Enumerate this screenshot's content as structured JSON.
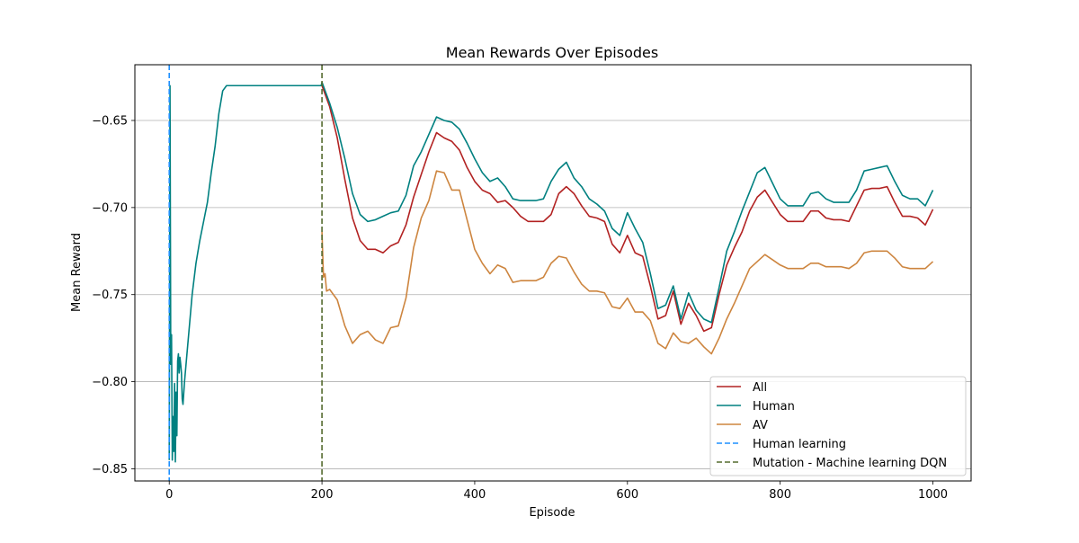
{
  "chart_data": {
    "type": "line",
    "title": "Mean Rewards Over Episodes",
    "xlabel": "Episode",
    "ylabel": "Mean Reward",
    "xlim": [
      -45,
      1050
    ],
    "ylim": [
      -0.857,
      -0.618
    ],
    "xticks": [
      0,
      200,
      400,
      600,
      800,
      1000
    ],
    "xtick_labels": [
      "0",
      "200",
      "400",
      "600",
      "800",
      "1000"
    ],
    "yticks": [
      -0.65,
      -0.7,
      -0.75,
      -0.8,
      -0.85
    ],
    "ytick_labels": [
      "−0.65",
      "−0.70",
      "−0.75",
      "−0.80",
      "−0.85"
    ],
    "grid": "y",
    "legend_position": "bottom-right",
    "series": [
      {
        "name": "All",
        "color": "#b22222",
        "style": "solid",
        "points": [
          [
            200,
            -0.63
          ],
          [
            210,
            -0.642
          ],
          [
            220,
            -0.66
          ],
          [
            230,
            -0.684
          ],
          [
            240,
            -0.706
          ],
          [
            250,
            -0.719
          ],
          [
            260,
            -0.724
          ],
          [
            270,
            -0.724
          ],
          [
            280,
            -0.726
          ],
          [
            290,
            -0.722
          ],
          [
            300,
            -0.72
          ],
          [
            310,
            -0.71
          ],
          [
            320,
            -0.694
          ],
          [
            330,
            -0.681
          ],
          [
            340,
            -0.668
          ],
          [
            350,
            -0.657
          ],
          [
            360,
            -0.66
          ],
          [
            370,
            -0.662
          ],
          [
            380,
            -0.667
          ],
          [
            390,
            -0.677
          ],
          [
            400,
            -0.685
          ],
          [
            410,
            -0.69
          ],
          [
            420,
            -0.692
          ],
          [
            430,
            -0.697
          ],
          [
            440,
            -0.696
          ],
          [
            450,
            -0.7
          ],
          [
            460,
            -0.705
          ],
          [
            470,
            -0.708
          ],
          [
            480,
            -0.708
          ],
          [
            490,
            -0.708
          ],
          [
            500,
            -0.704
          ],
          [
            510,
            -0.692
          ],
          [
            520,
            -0.688
          ],
          [
            530,
            -0.692
          ],
          [
            540,
            -0.699
          ],
          [
            550,
            -0.705
          ],
          [
            560,
            -0.706
          ],
          [
            570,
            -0.708
          ],
          [
            580,
            -0.721
          ],
          [
            590,
            -0.726
          ],
          [
            600,
            -0.716
          ],
          [
            610,
            -0.726
          ],
          [
            620,
            -0.728
          ],
          [
            630,
            -0.745
          ],
          [
            640,
            -0.764
          ],
          [
            650,
            -0.762
          ],
          [
            660,
            -0.748
          ],
          [
            670,
            -0.767
          ],
          [
            680,
            -0.755
          ],
          [
            690,
            -0.762
          ],
          [
            700,
            -0.771
          ],
          [
            710,
            -0.769
          ],
          [
            720,
            -0.75
          ],
          [
            730,
            -0.733
          ],
          [
            740,
            -0.723
          ],
          [
            750,
            -0.714
          ],
          [
            760,
            -0.702
          ],
          [
            770,
            -0.694
          ],
          [
            780,
            -0.69
          ],
          [
            790,
            -0.697
          ],
          [
            800,
            -0.704
          ],
          [
            810,
            -0.708
          ],
          [
            820,
            -0.708
          ],
          [
            830,
            -0.708
          ],
          [
            840,
            -0.702
          ],
          [
            850,
            -0.702
          ],
          [
            860,
            -0.706
          ],
          [
            870,
            -0.707
          ],
          [
            880,
            -0.707
          ],
          [
            890,
            -0.708
          ],
          [
            900,
            -0.699
          ],
          [
            910,
            -0.69
          ],
          [
            920,
            -0.689
          ],
          [
            930,
            -0.689
          ],
          [
            940,
            -0.688
          ],
          [
            950,
            -0.697
          ],
          [
            960,
            -0.705
          ],
          [
            970,
            -0.705
          ],
          [
            980,
            -0.706
          ],
          [
            990,
            -0.71
          ],
          [
            1000,
            -0.701
          ]
        ]
      },
      {
        "name": "Human",
        "color": "#008080",
        "style": "solid",
        "points": [
          [
            0,
            -0.845
          ],
          [
            1,
            -0.63
          ],
          [
            2,
            -0.79
          ],
          [
            3,
            -0.773
          ],
          [
            4,
            -0.845
          ],
          [
            5,
            -0.82
          ],
          [
            6,
            -0.84
          ],
          [
            7,
            -0.801
          ],
          [
            8,
            -0.846
          ],
          [
            9,
            -0.806
          ],
          [
            10,
            -0.831
          ],
          [
            11,
            -0.788
          ],
          [
            12,
            -0.784
          ],
          [
            13,
            -0.795
          ],
          [
            14,
            -0.786
          ],
          [
            15,
            -0.79
          ],
          [
            16,
            -0.795
          ],
          [
            17,
            -0.81
          ],
          [
            18,
            -0.813
          ],
          [
            20,
            -0.8
          ],
          [
            25,
            -0.775
          ],
          [
            30,
            -0.75
          ],
          [
            35,
            -0.732
          ],
          [
            40,
            -0.719
          ],
          [
            45,
            -0.708
          ],
          [
            50,
            -0.697
          ],
          [
            55,
            -0.68
          ],
          [
            60,
            -0.665
          ],
          [
            65,
            -0.646
          ],
          [
            70,
            -0.633
          ],
          [
            75,
            -0.63
          ],
          [
            100,
            -0.63
          ],
          [
            150,
            -0.63
          ],
          [
            199,
            -0.63
          ],
          [
            200,
            -0.628
          ],
          [
            210,
            -0.64
          ],
          [
            220,
            -0.654
          ],
          [
            230,
            -0.672
          ],
          [
            240,
            -0.692
          ],
          [
            250,
            -0.704
          ],
          [
            260,
            -0.708
          ],
          [
            270,
            -0.707
          ],
          [
            280,
            -0.705
          ],
          [
            290,
            -0.703
          ],
          [
            300,
            -0.702
          ],
          [
            310,
            -0.693
          ],
          [
            320,
            -0.676
          ],
          [
            330,
            -0.668
          ],
          [
            340,
            -0.658
          ],
          [
            350,
            -0.648
          ],
          [
            360,
            -0.65
          ],
          [
            370,
            -0.651
          ],
          [
            380,
            -0.655
          ],
          [
            390,
            -0.663
          ],
          [
            400,
            -0.672
          ],
          [
            410,
            -0.68
          ],
          [
            420,
            -0.685
          ],
          [
            430,
            -0.683
          ],
          [
            440,
            -0.688
          ],
          [
            450,
            -0.695
          ],
          [
            460,
            -0.696
          ],
          [
            470,
            -0.696
          ],
          [
            480,
            -0.696
          ],
          [
            490,
            -0.695
          ],
          [
            500,
            -0.685
          ],
          [
            510,
            -0.678
          ],
          [
            520,
            -0.674
          ],
          [
            530,
            -0.683
          ],
          [
            540,
            -0.688
          ],
          [
            550,
            -0.695
          ],
          [
            560,
            -0.698
          ],
          [
            570,
            -0.702
          ],
          [
            580,
            -0.712
          ],
          [
            590,
            -0.716
          ],
          [
            600,
            -0.703
          ],
          [
            610,
            -0.712
          ],
          [
            620,
            -0.72
          ],
          [
            630,
            -0.738
          ],
          [
            640,
            -0.758
          ],
          [
            650,
            -0.756
          ],
          [
            660,
            -0.745
          ],
          [
            670,
            -0.764
          ],
          [
            680,
            -0.749
          ],
          [
            690,
            -0.759
          ],
          [
            700,
            -0.764
          ],
          [
            710,
            -0.766
          ],
          [
            720,
            -0.746
          ],
          [
            730,
            -0.725
          ],
          [
            740,
            -0.714
          ],
          [
            750,
            -0.702
          ],
          [
            760,
            -0.691
          ],
          [
            770,
            -0.68
          ],
          [
            780,
            -0.677
          ],
          [
            790,
            -0.686
          ],
          [
            800,
            -0.695
          ],
          [
            810,
            -0.699
          ],
          [
            820,
            -0.699
          ],
          [
            830,
            -0.699
          ],
          [
            840,
            -0.692
          ],
          [
            850,
            -0.691
          ],
          [
            860,
            -0.695
          ],
          [
            870,
            -0.697
          ],
          [
            880,
            -0.697
          ],
          [
            890,
            -0.697
          ],
          [
            900,
            -0.69
          ],
          [
            910,
            -0.679
          ],
          [
            920,
            -0.678
          ],
          [
            930,
            -0.677
          ],
          [
            940,
            -0.676
          ],
          [
            950,
            -0.685
          ],
          [
            960,
            -0.693
          ],
          [
            970,
            -0.695
          ],
          [
            980,
            -0.695
          ],
          [
            990,
            -0.699
          ],
          [
            1000,
            -0.69
          ]
        ]
      },
      {
        "name": "AV",
        "color": "#cd853f",
        "style": "solid",
        "points": [
          [
            200,
            -0.714
          ],
          [
            202,
            -0.74
          ],
          [
            204,
            -0.738
          ],
          [
            206,
            -0.748
          ],
          [
            210,
            -0.747
          ],
          [
            220,
            -0.753
          ],
          [
            230,
            -0.768
          ],
          [
            240,
            -0.778
          ],
          [
            250,
            -0.773
          ],
          [
            260,
            -0.771
          ],
          [
            270,
            -0.776
          ],
          [
            280,
            -0.778
          ],
          [
            290,
            -0.769
          ],
          [
            300,
            -0.768
          ],
          [
            310,
            -0.752
          ],
          [
            320,
            -0.723
          ],
          [
            330,
            -0.706
          ],
          [
            340,
            -0.696
          ],
          [
            350,
            -0.679
          ],
          [
            360,
            -0.68
          ],
          [
            370,
            -0.69
          ],
          [
            380,
            -0.69
          ],
          [
            390,
            -0.707
          ],
          [
            400,
            -0.724
          ],
          [
            410,
            -0.732
          ],
          [
            420,
            -0.738
          ],
          [
            430,
            -0.733
          ],
          [
            440,
            -0.735
          ],
          [
            450,
            -0.743
          ],
          [
            460,
            -0.742
          ],
          [
            470,
            -0.742
          ],
          [
            480,
            -0.742
          ],
          [
            490,
            -0.74
          ],
          [
            500,
            -0.732
          ],
          [
            510,
            -0.728
          ],
          [
            520,
            -0.729
          ],
          [
            530,
            -0.737
          ],
          [
            540,
            -0.744
          ],
          [
            550,
            -0.748
          ],
          [
            560,
            -0.748
          ],
          [
            570,
            -0.749
          ],
          [
            580,
            -0.757
          ],
          [
            590,
            -0.758
          ],
          [
            600,
            -0.752
          ],
          [
            610,
            -0.76
          ],
          [
            620,
            -0.76
          ],
          [
            630,
            -0.765
          ],
          [
            640,
            -0.778
          ],
          [
            650,
            -0.781
          ],
          [
            660,
            -0.772
          ],
          [
            670,
            -0.777
          ],
          [
            680,
            -0.778
          ],
          [
            690,
            -0.775
          ],
          [
            700,
            -0.78
          ],
          [
            710,
            -0.784
          ],
          [
            720,
            -0.775
          ],
          [
            730,
            -0.764
          ],
          [
            740,
            -0.755
          ],
          [
            750,
            -0.745
          ],
          [
            760,
            -0.735
          ],
          [
            770,
            -0.731
          ],
          [
            780,
            -0.727
          ],
          [
            790,
            -0.73
          ],
          [
            800,
            -0.733
          ],
          [
            810,
            -0.735
          ],
          [
            820,
            -0.735
          ],
          [
            830,
            -0.735
          ],
          [
            840,
            -0.732
          ],
          [
            850,
            -0.732
          ],
          [
            860,
            -0.734
          ],
          [
            870,
            -0.734
          ],
          [
            880,
            -0.734
          ],
          [
            890,
            -0.735
          ],
          [
            900,
            -0.732
          ],
          [
            910,
            -0.726
          ],
          [
            920,
            -0.725
          ],
          [
            930,
            -0.725
          ],
          [
            940,
            -0.725
          ],
          [
            950,
            -0.729
          ],
          [
            960,
            -0.734
          ],
          [
            970,
            -0.735
          ],
          [
            980,
            -0.735
          ],
          [
            990,
            -0.735
          ],
          [
            1000,
            -0.731
          ]
        ]
      },
      {
        "name": "Human learning",
        "color": "#1e90ff",
        "style": "dashed",
        "vline": 0
      },
      {
        "name": "Mutation - Machine learning DQN",
        "color": "#556b2f",
        "style": "dashed",
        "vline": 200
      }
    ]
  }
}
